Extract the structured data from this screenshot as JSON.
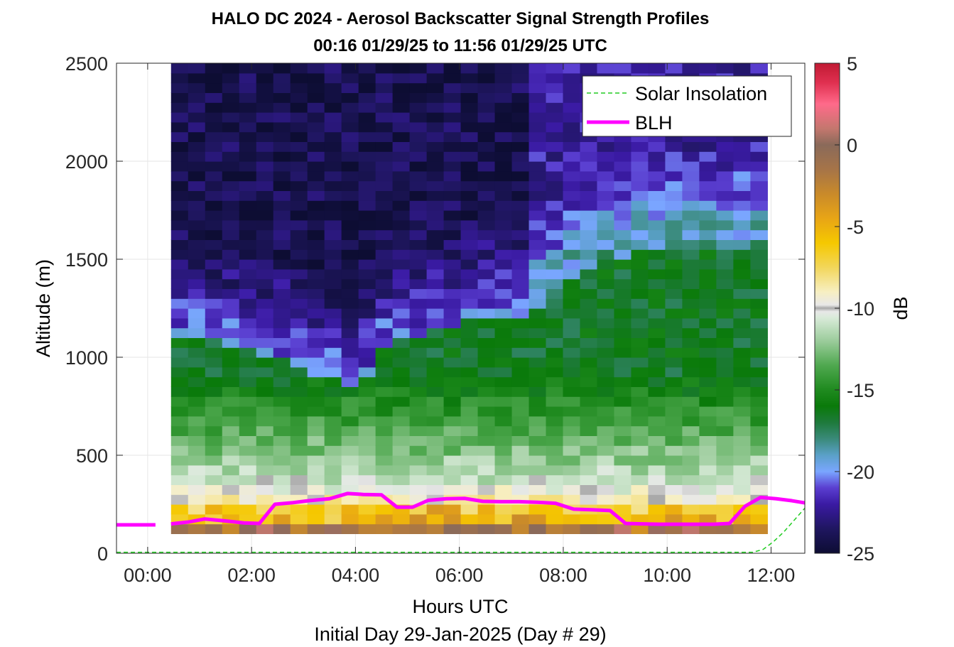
{
  "chart_data": {
    "type": "heatmap",
    "title": "HALO DC 2024 - Aerosol Backscatter Signal Strength Profiles",
    "subtitle": "00:16 01/29/25 to 11:56 01/29/25  UTC",
    "xlabel": "Hours UTC",
    "ylabel": "Altitude (m)",
    "footnote": "Initial Day 29-Jan-2025 (Day # 29)",
    "xlim": [
      -0.6,
      12.65
    ],
    "ylim": [
      0,
      2500
    ],
    "x_ticks": [
      0,
      2,
      4,
      6,
      8,
      10,
      12
    ],
    "x_tick_labels": [
      "00:00",
      "02:00",
      "04:00",
      "06:00",
      "08:00",
      "10:00",
      "12:00"
    ],
    "y_ticks": [
      0,
      500,
      1000,
      1500,
      2000,
      2500
    ],
    "y_tick_labels": [
      "0",
      "500",
      "1000",
      "1500",
      "2000",
      "2500"
    ],
    "grid": true,
    "legend_position": "top-right",
    "colorbar": {
      "label": "dB",
      "range": [
        -25,
        5
      ],
      "ticks": [
        5,
        0,
        -5,
        -10,
        -15,
        -20,
        -25
      ],
      "tick_labels": [
        "5",
        "0",
        "-5",
        "-10",
        "-15",
        "-20",
        "-25"
      ],
      "colormap": [
        {
          "v": -25,
          "c": "#0d0d33"
        },
        {
          "v": -23.5,
          "c": "#1f1660"
        },
        {
          "v": -22,
          "c": "#3a1aa3"
        },
        {
          "v": -21,
          "c": "#5a3ed0"
        },
        {
          "v": -20,
          "c": "#7aa6ff"
        },
        {
          "v": -19,
          "c": "#5aa0c8"
        },
        {
          "v": -18,
          "c": "#3a8a7a"
        },
        {
          "v": -17,
          "c": "#1e7a3c"
        },
        {
          "v": -16,
          "c": "#0a7a0a"
        },
        {
          "v": -15,
          "c": "#1f8a1f"
        },
        {
          "v": -13.5,
          "c": "#4fa84f"
        },
        {
          "v": -12,
          "c": "#9bcc9b"
        },
        {
          "v": -10.6,
          "c": "#d8ead8"
        },
        {
          "v": -10.2,
          "c": "#e8e8e8"
        },
        {
          "v": -10,
          "c": "#a8a8a8"
        },
        {
          "v": -9.8,
          "c": "#e8e8e8"
        },
        {
          "v": -9,
          "c": "#f7efc2"
        },
        {
          "v": -7.5,
          "c": "#f2d65a"
        },
        {
          "v": -6,
          "c": "#f5c800"
        },
        {
          "v": -4.5,
          "c": "#e8a516"
        },
        {
          "v": -3,
          "c": "#c98a2a"
        },
        {
          "v": -1.5,
          "c": "#a67448"
        },
        {
          "v": 0,
          "c": "#8a6a5a"
        },
        {
          "v": 1,
          "c": "#c4776e"
        },
        {
          "v": 2.5,
          "c": "#ff6a8a"
        },
        {
          "v": 3.8,
          "c": "#e03050"
        },
        {
          "v": 5,
          "c": "#c01a33"
        }
      ]
    },
    "heatmap": {
      "x_start": 0.45,
      "x_end": 11.93,
      "y_start": 100,
      "bin_height": 50,
      "n_cols": 35,
      "profile_times": [
        0.62,
        0.95,
        1.28,
        1.61,
        1.93,
        2.26,
        2.59,
        2.92,
        3.25,
        3.58,
        3.9,
        4.23,
        4.56,
        4.89,
        5.22,
        5.55,
        5.88,
        6.2,
        6.53,
        6.86,
        7.19,
        7.52,
        7.85,
        8.17,
        8.5,
        8.83,
        9.16,
        9.49,
        9.81,
        10.14,
        10.47,
        10.8,
        11.13,
        11.46,
        11.78
      ],
      "base_profile_dB": [
        -1,
        -5,
        -6,
        -9,
        -10,
        -11,
        -11.5,
        -12,
        -12.5,
        -13,
        -13.5,
        -14,
        -14.5,
        -15,
        -15.5,
        -16,
        -16.5,
        -16.5,
        -16.5
      ],
      "upper_free_troposphere_dB": [
        -20.5,
        -21,
        -21,
        -21.5,
        -22,
        -22.5,
        -23,
        -23,
        -23.5,
        -23.5,
        -24,
        -24,
        -24,
        -24,
        -24
      ],
      "boundary_top_m": [
        1080,
        1080,
        1060,
        1050,
        1030,
        1000,
        960,
        930,
        880,
        860,
        830,
        880,
        1020,
        1080,
        1100,
        1120,
        1140,
        1160,
        1160,
        1180,
        1200,
        1240,
        1300,
        1360,
        1450,
        1480,
        1500,
        1520,
        1520,
        1530,
        1540,
        1540,
        1530,
        1520,
        1510
      ]
    },
    "series": [
      {
        "name": "Solar Insolation",
        "style": "dashed",
        "color": "#22cc22",
        "x": [
          -0.6,
          11.5,
          11.65,
          11.85,
          12.05,
          12.25,
          12.45,
          12.65
        ],
        "y": [
          5,
          5,
          5,
          20,
          60,
          110,
          170,
          230
        ]
      },
      {
        "name": "BLH",
        "style": "solid",
        "color": "#ff00ff",
        "segments": [
          {
            "x": [
              -0.6,
              0.15
            ],
            "y": [
              145,
              145
            ]
          },
          {
            "x": [
              0.45,
              0.8,
              1.1,
              1.5,
              1.85,
              2.15,
              2.45,
              2.8,
              3.1,
              3.5,
              3.85,
              4.15,
              4.5,
              4.8,
              5.1,
              5.4,
              5.75,
              6.1,
              6.45,
              6.8,
              7.15,
              7.5,
              7.85,
              8.2,
              8.55,
              8.9,
              9.2,
              9.5,
              9.85,
              10.2,
              10.55,
              10.9,
              11.2,
              11.5,
              11.8,
              12.1,
              12.4,
              12.65
            ],
            "y": [
              150,
              160,
              175,
              165,
              155,
              152,
              250,
              258,
              268,
              278,
              305,
              300,
              298,
              235,
              235,
              270,
              278,
              280,
              265,
              263,
              263,
              260,
              255,
              225,
              222,
              218,
              152,
              150,
              148,
              148,
              148,
              148,
              152,
              240,
              285,
              278,
              268,
              257
            ]
          }
        ]
      }
    ]
  }
}
